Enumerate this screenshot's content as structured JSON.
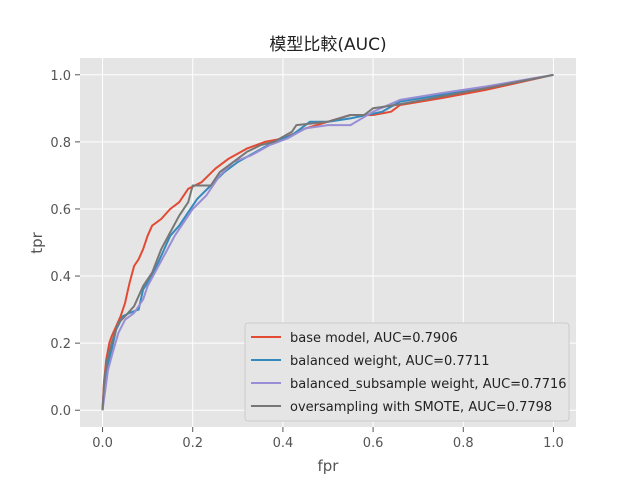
{
  "chart_data": {
    "type": "line",
    "title": "模型比較(AUC)",
    "xlabel": "fpr",
    "ylabel": "tpr",
    "xlim": [
      -0.05,
      1.05
    ],
    "ylim": [
      -0.05,
      1.05
    ],
    "xticks": [
      0.0,
      0.2,
      0.4,
      0.6,
      0.8,
      1.0
    ],
    "yticks": [
      0.0,
      0.2,
      0.4,
      0.6,
      0.8,
      1.0
    ],
    "xtick_labels": [
      "0.0",
      "0.2",
      "0.4",
      "0.6",
      "0.8",
      "1.0"
    ],
    "ytick_labels": [
      "0.0",
      "0.2",
      "0.4",
      "0.6",
      "0.8",
      "1.0"
    ],
    "grid": true,
    "legend_position": "lower-right",
    "series": [
      {
        "name": "base model, AUC=0.7906",
        "color": "#e24a33",
        "points": [
          [
            0.0,
            0.0
          ],
          [
            0.003,
            0.08
          ],
          [
            0.008,
            0.15
          ],
          [
            0.015,
            0.2
          ],
          [
            0.02,
            0.22
          ],
          [
            0.03,
            0.25
          ],
          [
            0.04,
            0.28
          ],
          [
            0.05,
            0.32
          ],
          [
            0.055,
            0.35
          ],
          [
            0.06,
            0.38
          ],
          [
            0.07,
            0.43
          ],
          [
            0.08,
            0.45
          ],
          [
            0.09,
            0.48
          ],
          [
            0.1,
            0.52
          ],
          [
            0.11,
            0.55
          ],
          [
            0.13,
            0.57
          ],
          [
            0.15,
            0.6
          ],
          [
            0.17,
            0.62
          ],
          [
            0.19,
            0.66
          ],
          [
            0.22,
            0.68
          ],
          [
            0.25,
            0.72
          ],
          [
            0.28,
            0.75
          ],
          [
            0.32,
            0.78
          ],
          [
            0.36,
            0.8
          ],
          [
            0.4,
            0.81
          ],
          [
            0.45,
            0.84
          ],
          [
            0.5,
            0.86
          ],
          [
            0.55,
            0.88
          ],
          [
            0.6,
            0.88
          ],
          [
            0.64,
            0.89
          ],
          [
            0.66,
            0.91
          ],
          [
            0.75,
            0.93
          ],
          [
            0.85,
            0.955
          ],
          [
            1.0,
            1.0
          ]
        ]
      },
      {
        "name": "balanced weight, AUC=0.7711",
        "color": "#348abd",
        "points": [
          [
            0.0,
            0.0
          ],
          [
            0.005,
            0.07
          ],
          [
            0.01,
            0.13
          ],
          [
            0.02,
            0.18
          ],
          [
            0.03,
            0.24
          ],
          [
            0.045,
            0.28
          ],
          [
            0.06,
            0.29
          ],
          [
            0.08,
            0.3
          ],
          [
            0.09,
            0.36
          ],
          [
            0.11,
            0.4
          ],
          [
            0.13,
            0.46
          ],
          [
            0.15,
            0.52
          ],
          [
            0.17,
            0.55
          ],
          [
            0.19,
            0.59
          ],
          [
            0.21,
            0.63
          ],
          [
            0.24,
            0.67
          ],
          [
            0.27,
            0.71
          ],
          [
            0.3,
            0.74
          ],
          [
            0.34,
            0.77
          ],
          [
            0.38,
            0.8
          ],
          [
            0.42,
            0.82
          ],
          [
            0.46,
            0.86
          ],
          [
            0.5,
            0.86
          ],
          [
            0.55,
            0.87
          ],
          [
            0.62,
            0.89
          ],
          [
            0.66,
            0.92
          ],
          [
            0.75,
            0.94
          ],
          [
            0.85,
            0.96
          ],
          [
            1.0,
            1.0
          ]
        ]
      },
      {
        "name": "balanced_subsample weight, AUC=0.7716",
        "color": "#988ed5",
        "points": [
          [
            0.0,
            0.0
          ],
          [
            0.006,
            0.06
          ],
          [
            0.012,
            0.12
          ],
          [
            0.022,
            0.17
          ],
          [
            0.035,
            0.23
          ],
          [
            0.05,
            0.27
          ],
          [
            0.07,
            0.29
          ],
          [
            0.09,
            0.33
          ],
          [
            0.1,
            0.37
          ],
          [
            0.12,
            0.42
          ],
          [
            0.14,
            0.47
          ],
          [
            0.16,
            0.52
          ],
          [
            0.18,
            0.56
          ],
          [
            0.2,
            0.6
          ],
          [
            0.23,
            0.64
          ],
          [
            0.26,
            0.7
          ],
          [
            0.29,
            0.74
          ],
          [
            0.33,
            0.76
          ],
          [
            0.37,
            0.79
          ],
          [
            0.41,
            0.81
          ],
          [
            0.45,
            0.84
          ],
          [
            0.5,
            0.85
          ],
          [
            0.55,
            0.85
          ],
          [
            0.6,
            0.89
          ],
          [
            0.66,
            0.925
          ],
          [
            0.75,
            0.945
          ],
          [
            0.85,
            0.965
          ],
          [
            1.0,
            1.0
          ]
        ]
      },
      {
        "name": "oversampling with SMOTE, AUC=0.7798",
        "color": "#777777",
        "points": [
          [
            0.0,
            0.0
          ],
          [
            0.004,
            0.09
          ],
          [
            0.01,
            0.15
          ],
          [
            0.02,
            0.2
          ],
          [
            0.035,
            0.26
          ],
          [
            0.05,
            0.28
          ],
          [
            0.07,
            0.31
          ],
          [
            0.09,
            0.37
          ],
          [
            0.11,
            0.41
          ],
          [
            0.13,
            0.48
          ],
          [
            0.15,
            0.53
          ],
          [
            0.17,
            0.58
          ],
          [
            0.19,
            0.62
          ],
          [
            0.2,
            0.67
          ],
          [
            0.24,
            0.67
          ],
          [
            0.26,
            0.71
          ],
          [
            0.29,
            0.74
          ],
          [
            0.32,
            0.77
          ],
          [
            0.35,
            0.79
          ],
          [
            0.38,
            0.8
          ],
          [
            0.42,
            0.83
          ],
          [
            0.43,
            0.85
          ],
          [
            0.5,
            0.86
          ],
          [
            0.55,
            0.88
          ],
          [
            0.58,
            0.88
          ],
          [
            0.6,
            0.9
          ],
          [
            0.65,
            0.91
          ],
          [
            0.75,
            0.935
          ],
          [
            0.85,
            0.96
          ],
          [
            1.0,
            1.0
          ]
        ]
      }
    ]
  }
}
